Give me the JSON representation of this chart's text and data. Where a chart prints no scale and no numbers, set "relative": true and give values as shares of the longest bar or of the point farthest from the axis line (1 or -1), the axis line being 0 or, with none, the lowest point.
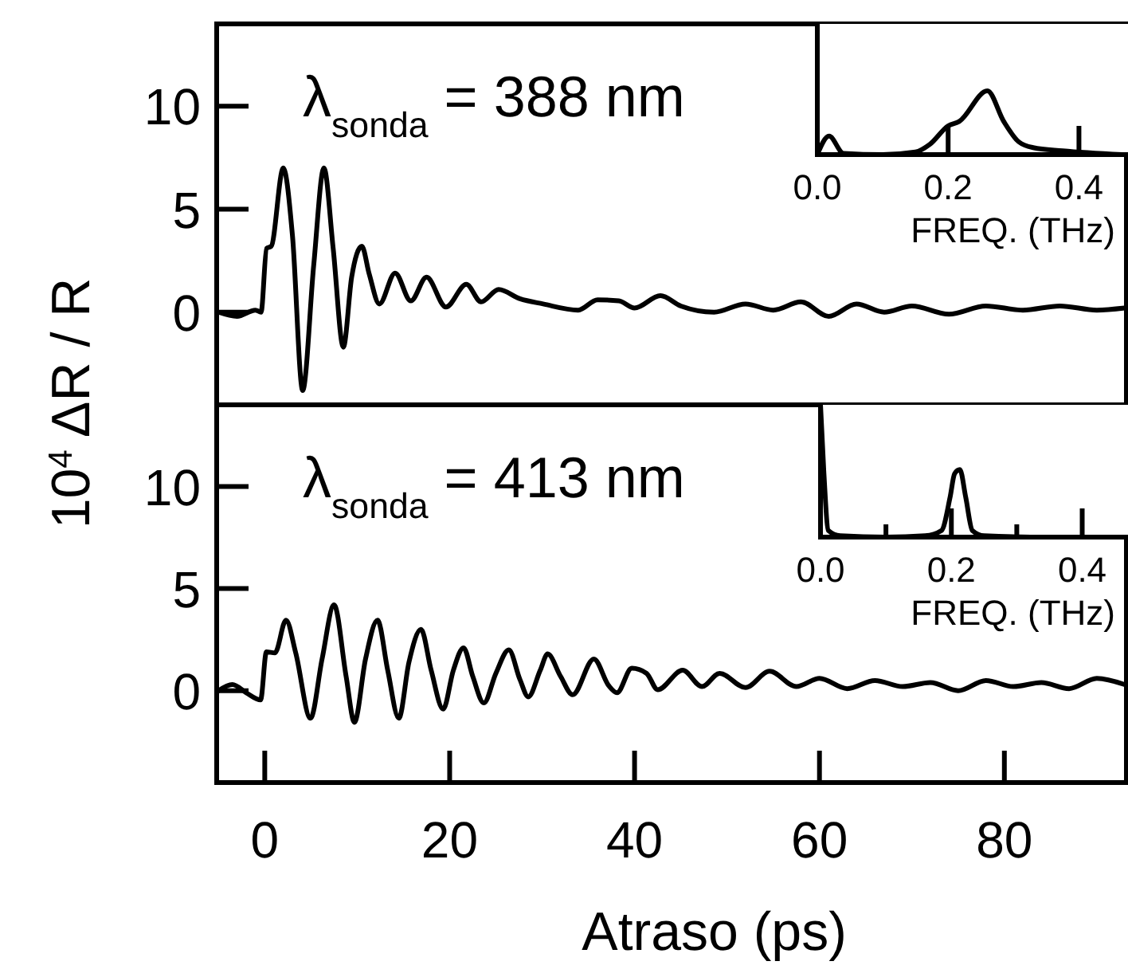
{
  "chart_data": [
    {
      "type": "line",
      "annotations": [
        "λ$_{sonda}$ = 388 nm"
      ],
      "ylabel": "10$^{4}$ ΔR / R",
      "xlim": [
        -5.2,
        93.2
      ],
      "ylim": [
        -4.5,
        14
      ],
      "yticks": [
        0,
        5,
        10
      ],
      "tick_labels": "y",
      "marker": "none",
      "line_style": "solid",
      "series": [
        {
          "color": "#000000",
          "x": [
            -5,
            -3,
            -1,
            -0.4,
            0.2,
            0.7,
            2.0,
            3.0,
            4.1,
            5.3,
            6.4,
            7.4,
            8.5,
            9.4,
            10.5,
            11.3,
            12.4,
            14.1,
            15.8,
            17.5,
            19.6,
            21.8,
            23.4,
            25.3,
            27.6,
            30.1,
            33.9,
            36,
            38.3,
            40,
            42.8,
            45,
            48.6,
            52,
            55,
            58,
            61,
            64,
            67,
            70,
            74,
            78,
            82,
            86,
            90,
            93
          ],
          "values": [
            0,
            -0.2,
            0.1,
            0,
            3.1,
            3.2,
            7.0,
            3.7,
            -3.8,
            2.3,
            7.0,
            3.1,
            -1.7,
            1.7,
            3.2,
            1.85,
            0.4,
            1.9,
            0.55,
            1.7,
            0.25,
            1.35,
            0.5,
            1.1,
            0.65,
            0.4,
            0.1,
            0.6,
            0.55,
            0.2,
            0.8,
            0.3,
            0,
            0.4,
            0.1,
            0.5,
            -0.2,
            0.4,
            0,
            0.3,
            -0.1,
            0.3,
            0.1,
            0.3,
            0.1,
            0.2
          ]
        }
      ]
    },
    {
      "type": "line",
      "relative": true,
      "xlabel": "FREQ. (THz)",
      "xlim": [
        0,
        0.475
      ],
      "xticks": [
        {
          "value": 0,
          "label": "0.0"
        },
        {
          "value": 0.2,
          "label": "0.2"
        },
        {
          "value": 0.4,
          "label": "0.4"
        }
      ],
      "tick_labels": "x",
      "marker": "none",
      "line_style": "solid",
      "series": [
        {
          "color": "#000000",
          "x": [
            0,
            0.018,
            0.04,
            0.1,
            0.15,
            0.172,
            0.2,
            0.217,
            0.26,
            0.285,
            0.308,
            0.33,
            0.375,
            0.466
          ],
          "values": [
            0,
            0.29,
            0.02,
            0,
            0.04,
            0.16,
            0.45,
            0.52,
            1,
            0.52,
            0.2,
            0.11,
            0.06,
            0
          ]
        }
      ]
    },
    {
      "type": "line",
      "annotations": [
        "λ$_{sonda}$ = 413 nm"
      ],
      "xlabel": "Atraso (ps)",
      "xlim": [
        -5.2,
        93.2
      ],
      "xticks": [
        0,
        20,
        40,
        60,
        80
      ],
      "ylim": [
        -4.5,
        14
      ],
      "yticks": [
        0,
        5,
        10
      ],
      "marker": "none",
      "line_style": "solid",
      "series": [
        {
          "color": "#000000",
          "x": [
            -5,
            -3.5,
            -2,
            -0.45,
            0.18,
            1.1,
            2.3,
            3.35,
            4.95,
            6.2,
            7.5,
            8.8,
            9.7,
            10.9,
            12.2,
            13.3,
            14.5,
            15.6,
            16.9,
            18.0,
            19.3,
            20.4,
            21.5,
            22.5,
            23.7,
            25.0,
            26.4,
            27.6,
            28.5,
            29.8,
            30.6,
            32.0,
            33.3,
            35.6,
            37.2,
            38.1,
            39.7,
            41.3,
            42.5,
            45.2,
            47.3,
            49.2,
            52.0,
            54.6,
            57.5,
            60,
            63,
            66,
            69,
            72,
            75,
            78,
            81,
            84,
            87,
            90,
            93
          ],
          "values": [
            0,
            0.3,
            -0.1,
            -0.45,
            1.9,
            1.85,
            3.45,
            1.85,
            -1.35,
            1.55,
            4.2,
            0.7,
            -1.55,
            1.55,
            3.45,
            1.0,
            -1.35,
            1.4,
            3.0,
            1.0,
            -0.9,
            1.0,
            2.1,
            0.7,
            -0.6,
            0.85,
            2.0,
            0.55,
            -0.3,
            1.0,
            1.8,
            0.7,
            -0.2,
            1.55,
            0.25,
            -0.1,
            1.1,
            0.85,
            0.05,
            1.0,
            0.2,
            0.85,
            0.15,
            0.95,
            0.2,
            0.6,
            0.1,
            0.5,
            0.2,
            0.4,
            0.0,
            0.5,
            0.2,
            0.4,
            0.1,
            0.6,
            0.3
          ]
        }
      ]
    },
    {
      "type": "line",
      "relative": true,
      "xlabel": "FREQ. (THz)",
      "xlim": [
        0,
        0.47
      ],
      "xticks": [
        {
          "value": 0,
          "label": "0.0"
        },
        {
          "value": 0.1,
          "label": null
        },
        {
          "value": 0.2,
          "label": "0.2"
        },
        {
          "value": 0.3,
          "label": null
        },
        {
          "value": 0.4,
          "label": "0.4"
        }
      ],
      "tick_labels": "x",
      "marker": "none",
      "line_style": "solid",
      "series": [
        {
          "color": "#000000",
          "x": [
            0,
            0.005,
            0.012,
            0.03,
            0.1,
            0.16,
            0.185,
            0.198,
            0.205,
            0.213,
            0.222,
            0.232,
            0.25,
            0.35,
            0.47
          ],
          "values": [
            1,
            0.5,
            0.05,
            0.01,
            0,
            0.01,
            0.05,
            0.3,
            0.48,
            0.51,
            0.3,
            0.05,
            0.01,
            0,
            0
          ]
        }
      ]
    }
  ]
}
